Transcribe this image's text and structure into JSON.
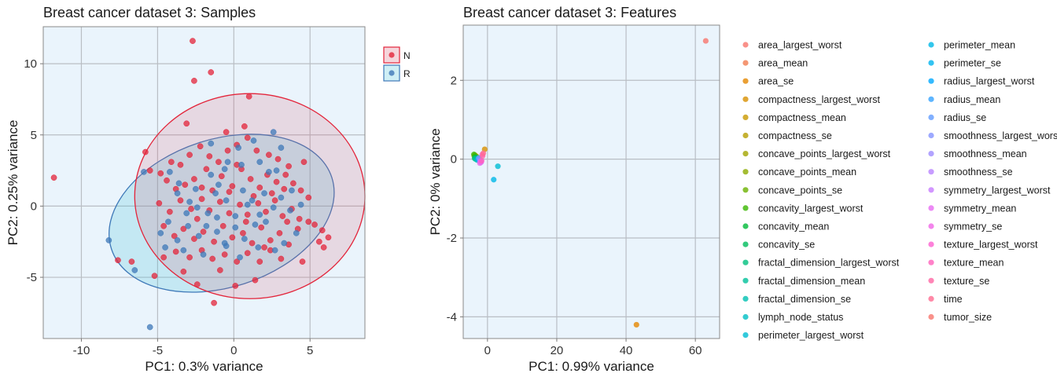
{
  "chart_data": [
    {
      "type": "scatter",
      "title": "Breast cancer dataset 3: Samples",
      "xlabel": "PC1: 0.3% variance",
      "ylabel": "PC2: 0.25% variance",
      "xlim": [
        -12.5,
        8.6
      ],
      "ylim": [
        -9.3,
        12.6
      ],
      "xticks": [
        -10,
        -5,
        0,
        5
      ],
      "yticks": [
        -5,
        0,
        5,
        10
      ],
      "xtick_labels": [
        "-10",
        "-5",
        "0",
        "5"
      ],
      "ytick_labels": [
        "-5",
        "0",
        "5",
        "10"
      ],
      "grid": true,
      "legend": {
        "position": "top-right",
        "entries": [
          "N",
          "R"
        ]
      },
      "ellipses": [
        {
          "name": "N",
          "cx": 1.05,
          "cy": 0.7,
          "rx": 7.55,
          "ry": 7.2,
          "angle_deg": 0
        },
        {
          "name": "R",
          "cx": -0.8,
          "cy": -0.5,
          "rx": 7.6,
          "ry": 5.2,
          "angle_deg": 18
        }
      ],
      "series": [
        {
          "name": "N",
          "color": "#e3243a",
          "points": [
            [
              -2.7,
              11.6
            ],
            [
              -2.6,
              8.8
            ],
            [
              -1.5,
              9.4
            ],
            [
              1,
              7.7
            ],
            [
              -3.1,
              5.8
            ],
            [
              -0.5,
              5.2
            ],
            [
              0.7,
              5.6
            ],
            [
              -5.8,
              3.8
            ],
            [
              -5.5,
              2.5
            ],
            [
              -4.8,
              2.3
            ],
            [
              -4.1,
              3.1
            ],
            [
              -3.5,
              2.9
            ],
            [
              -2.9,
              3.6
            ],
            [
              -2.2,
              4.2
            ],
            [
              -1.6,
              3.5
            ],
            [
              -1,
              3.1
            ],
            [
              -0.4,
              3.9
            ],
            [
              0.2,
              4.3
            ],
            [
              0.9,
              4.8
            ],
            [
              1.5,
              3.9
            ],
            [
              2.3,
              3.6
            ],
            [
              2.9,
              3.3
            ],
            [
              3.6,
              2.8
            ],
            [
              4.6,
              3.1
            ],
            [
              -4.4,
              1.8
            ],
            [
              -3.8,
              1.2
            ],
            [
              -3.2,
              1.5
            ],
            [
              -2.6,
              1.9
            ],
            [
              -2.1,
              1.3
            ],
            [
              -1.4,
              1.1
            ],
            [
              -0.8,
              2.1
            ],
            [
              -0.1,
              1.4
            ],
            [
              0.5,
              2.6
            ],
            [
              1.1,
              1.9
            ],
            [
              1.7,
              1.3
            ],
            [
              2.2,
              2.2
            ],
            [
              2.8,
              1.7
            ],
            [
              3.3,
              1.2
            ],
            [
              3.9,
              1.6
            ],
            [
              4.4,
              1.1
            ],
            [
              4.9,
              0.6
            ],
            [
              -4.9,
              0.2
            ],
            [
              -4.2,
              -0.4
            ],
            [
              -3.5,
              0.4
            ],
            [
              -2.8,
              -0.2
            ],
            [
              -2.1,
              0.5
            ],
            [
              -1.6,
              -0.3
            ],
            [
              -0.9,
              0.3
            ],
            [
              -0.3,
              -0.5
            ],
            [
              0.4,
              0.1
            ],
            [
              0.9,
              -0.6
            ],
            [
              1.6,
              0.2
            ],
            [
              2.1,
              -0.4
            ],
            [
              2.7,
              0.4
            ],
            [
              3.2,
              -0.7
            ],
            [
              3.8,
              -0.2
            ],
            [
              4.3,
              -0.9
            ],
            [
              4.9,
              -1.1
            ],
            [
              -4.6,
              -1.4
            ],
            [
              -3.9,
              -2.1
            ],
            [
              -3.3,
              -1.6
            ],
            [
              -2.6,
              -2.3
            ],
            [
              -2,
              -1.8
            ],
            [
              -1.3,
              -2.5
            ],
            [
              -0.7,
              -1.4
            ],
            [
              -0.1,
              -2.2
            ],
            [
              0.6,
              -1.9
            ],
            [
              1.2,
              -2.6
            ],
            [
              1.8,
              -1.5
            ],
            [
              2.4,
              -2.4
            ],
            [
              3,
              -1.9
            ],
            [
              3.6,
              -2.7
            ],
            [
              4.2,
              -1.6
            ],
            [
              5.3,
              -1.3
            ],
            [
              5.8,
              -1.7
            ],
            [
              -7.6,
              -3.8
            ],
            [
              -6.7,
              -3.9
            ],
            [
              -4.6,
              -3.6
            ],
            [
              -3.8,
              -3.2
            ],
            [
              -2.9,
              -3.6
            ],
            [
              -2.1,
              -3.1
            ],
            [
              -1.4,
              -3.7
            ],
            [
              -0.6,
              -3.4
            ],
            [
              0.2,
              -3.9
            ],
            [
              0.9,
              -3.3
            ],
            [
              1.7,
              -3.9
            ],
            [
              2.4,
              -3.1
            ],
            [
              3.1,
              -3.7
            ],
            [
              4.5,
              -3.9
            ],
            [
              5.6,
              -2.5
            ],
            [
              5.9,
              -2.9
            ],
            [
              6.2,
              -2.2
            ],
            [
              -11.8,
              2
            ],
            [
              -5.2,
              -4.9
            ],
            [
              -3.3,
              -4.6
            ],
            [
              -2.4,
              -5.5
            ],
            [
              -0.9,
              -4.5
            ],
            [
              0.1,
              -5.6
            ],
            [
              1.4,
              -5.2
            ],
            [
              -1.3,
              -6.8
            ],
            [
              -0.3,
              1
            ],
            [
              1.3,
              0.7
            ],
            [
              2.5,
              0.9
            ],
            [
              -1.8,
              2.6
            ],
            [
              0.2,
              2.9
            ],
            [
              3.4,
              2.2
            ],
            [
              -2.4,
              -0.9
            ],
            [
              0.8,
              -1.1
            ],
            [
              2,
              -2.9
            ],
            [
              3.5,
              -1.1
            ]
          ]
        },
        {
          "name": "R",
          "color": "#3e78b8",
          "points": [
            [
              -5.9,
              2.4
            ],
            [
              -4.2,
              2.4
            ],
            [
              -3.6,
              1.6
            ],
            [
              -2.5,
              1.2
            ],
            [
              -1.5,
              2.2
            ],
            [
              -1.2,
              0.9
            ],
            [
              -0.6,
              2.6
            ],
            [
              0.3,
              4.1
            ],
            [
              0.5,
              2.9
            ],
            [
              1.3,
              4.6
            ],
            [
              1.7,
              3.1
            ],
            [
              2.8,
              2.5
            ],
            [
              3.1,
              4.1
            ],
            [
              2.6,
              5.2
            ],
            [
              -1.5,
              4.4
            ],
            [
              -0.4,
              3.1
            ],
            [
              -3.7,
              0.9
            ],
            [
              -3.1,
              -0.5
            ],
            [
              -2.4,
              -0.1
            ],
            [
              -1.7,
              -0.5
            ],
            [
              -1.1,
              -0.8
            ],
            [
              -0.5,
              0.4
            ],
            [
              0.1,
              -0.7
            ],
            [
              0.6,
              1.1
            ],
            [
              1.2,
              0.4
            ],
            [
              2,
              0.9
            ],
            [
              2.6,
              -0.1
            ],
            [
              3.1,
              0.6
            ],
            [
              3.7,
              -0.3
            ],
            [
              4.4,
              0.1
            ],
            [
              -4.8,
              -1.9
            ],
            [
              -4.3,
              -1.1
            ],
            [
              -3.7,
              -2.4
            ],
            [
              -3,
              -1.4
            ],
            [
              -2.3,
              -2.1
            ],
            [
              -1.8,
              -1.4
            ],
            [
              -1.1,
              -1.8
            ],
            [
              -0.5,
              -2.8
            ],
            [
              0.1,
              -1.5
            ],
            [
              0.7,
              -2.3
            ],
            [
              1.4,
              -1.3
            ],
            [
              2.1,
              -1.1
            ],
            [
              2.7,
              -3.1
            ],
            [
              3.3,
              -2.6
            ],
            [
              4.1,
              -1.9
            ],
            [
              -8.2,
              -2.4
            ],
            [
              -6.5,
              -4.5
            ],
            [
              -5.5,
              -8.5
            ],
            [
              -4.5,
              -2.9
            ],
            [
              -3.3,
              -3.1
            ],
            [
              -2,
              -3.4
            ],
            [
              -0.6,
              -2.6
            ],
            [
              0.4,
              -3.6
            ],
            [
              1.6,
              -2.9
            ],
            [
              -2.9,
              0.3
            ],
            [
              0.9,
              0.1
            ],
            [
              2.3,
              2.4
            ],
            [
              -1,
              1.5
            ],
            [
              1.7,
              -0.6
            ],
            [
              3.8,
              1.1
            ]
          ]
        }
      ]
    },
    {
      "type": "scatter",
      "title": "Breast cancer dataset 3: Features",
      "xlabel": "PC1: 0.99% variance",
      "ylabel": "PC2: 0% variance",
      "xlim": [
        -7,
        67
      ],
      "ylim": [
        -4.55,
        3.4
      ],
      "xticks": [
        0,
        20,
        40,
        60
      ],
      "yticks": [
        -4,
        -2,
        0,
        2
      ],
      "xtick_labels": [
        "0",
        "20",
        "40",
        "60"
      ],
      "ytick_labels": [
        "-4",
        "-2",
        "0",
        "2"
      ],
      "grid": true,
      "legend": {
        "position": "right",
        "columns": 2
      },
      "series": [
        {
          "name": "area_largest_worst",
          "color": "#f8766d",
          "point": [
            -3.0,
            0.05
          ]
        },
        {
          "name": "area_mean",
          "color": "#f17d50",
          "point": [
            -2.8,
            0.04
          ]
        },
        {
          "name": "area_se",
          "color": "#e58700",
          "point": [
            43,
            -4.2
          ]
        },
        {
          "name": "compactness_largest_worst",
          "color": "#d89000",
          "point": [
            -0.8,
            0.25
          ]
        },
        {
          "name": "compactness_mean",
          "color": "#c99800",
          "point": [
            -3.2,
            0.07
          ]
        },
        {
          "name": "compactness_se",
          "color": "#b79f00",
          "point": [
            -3.4,
            0.08
          ]
        },
        {
          "name": "concave_points_largest_worst",
          "color": "#a3a500",
          "point": [
            -3.6,
            0.1
          ]
        },
        {
          "name": "concave_points_mean",
          "color": "#8dab00",
          "point": [
            -3.8,
            0.08
          ]
        },
        {
          "name": "concave_points_se",
          "color": "#6bb100",
          "point": [
            -3.3,
            0.06
          ]
        },
        {
          "name": "concavity_largest_worst",
          "color": "#39b600",
          "point": [
            -3.9,
            0.12
          ]
        },
        {
          "name": "concavity_mean",
          "color": "#00ba38",
          "point": [
            -3.5,
            0.05
          ]
        },
        {
          "name": "concavity_se",
          "color": "#00bd5c",
          "point": [
            -3.1,
            0.04
          ]
        },
        {
          "name": "fractal_dimension_largest_worst",
          "color": "#00bf7d",
          "point": [
            -3.7,
            0.02
          ]
        },
        {
          "name": "fractal_dimension_mean",
          "color": "#00c19a",
          "point": [
            -3.4,
            0.0
          ]
        },
        {
          "name": "fractal_dimension_se",
          "color": "#00c0b2",
          "point": [
            -3.0,
            -0.02
          ]
        },
        {
          "name": "lymph_node_status",
          "color": "#00bfc4",
          "point": [
            -2.6,
            0.02
          ]
        },
        {
          "name": "perimeter_largest_worst",
          "color": "#00bdd3",
          "point": [
            3.0,
            -0.18
          ]
        },
        {
          "name": "perimeter_mean",
          "color": "#00b8e7",
          "point": [
            1.8,
            -0.52
          ]
        },
        {
          "name": "perimeter_se",
          "color": "#00b4ef",
          "point": [
            -2.4,
            -0.04
          ]
        },
        {
          "name": "radius_largest_worst",
          "color": "#00a9ff",
          "point": [
            -2.7,
            0.0
          ]
        },
        {
          "name": "radius_mean",
          "color": "#35a2ff",
          "point": [
            -2.2,
            -0.02
          ]
        },
        {
          "name": "radius_se",
          "color": "#619cff",
          "point": [
            -2.5,
            0.03
          ]
        },
        {
          "name": "smoothness_largest_worst",
          "color": "#8494ff",
          "point": [
            -2.3,
            0.01
          ]
        },
        {
          "name": "smoothness_mean",
          "color": "#9f8cff",
          "point": [
            -2.0,
            -0.05
          ]
        },
        {
          "name": "smoothness_se",
          "color": "#b983ff",
          "point": [
            -1.9,
            -0.08
          ]
        },
        {
          "name": "symmetry_largest_worst",
          "color": "#c77cff",
          "point": [
            -2.1,
            -0.06
          ]
        },
        {
          "name": "symmetry_mean",
          "color": "#e76bf3",
          "point": [
            -1.8,
            -0.07
          ]
        },
        {
          "name": "symmetry_se",
          "color": "#f067e7",
          "point": [
            -2.2,
            -0.1
          ]
        },
        {
          "name": "texture_largest_worst",
          "color": "#fd61d1",
          "point": [
            -1.5,
            0.12
          ]
        },
        {
          "name": "texture_mean",
          "color": "#ff62bc",
          "point": [
            -1.7,
            -0.04
          ]
        },
        {
          "name": "texture_se",
          "color": "#ff67a4",
          "point": [
            -1.4,
            0.08
          ]
        },
        {
          "name": "time",
          "color": "#ff6c91",
          "point": [
            -1.2,
            0.15
          ]
        },
        {
          "name": "tumor_size",
          "color": "#f8766d",
          "point": [
            63,
            3.0
          ]
        }
      ]
    }
  ]
}
